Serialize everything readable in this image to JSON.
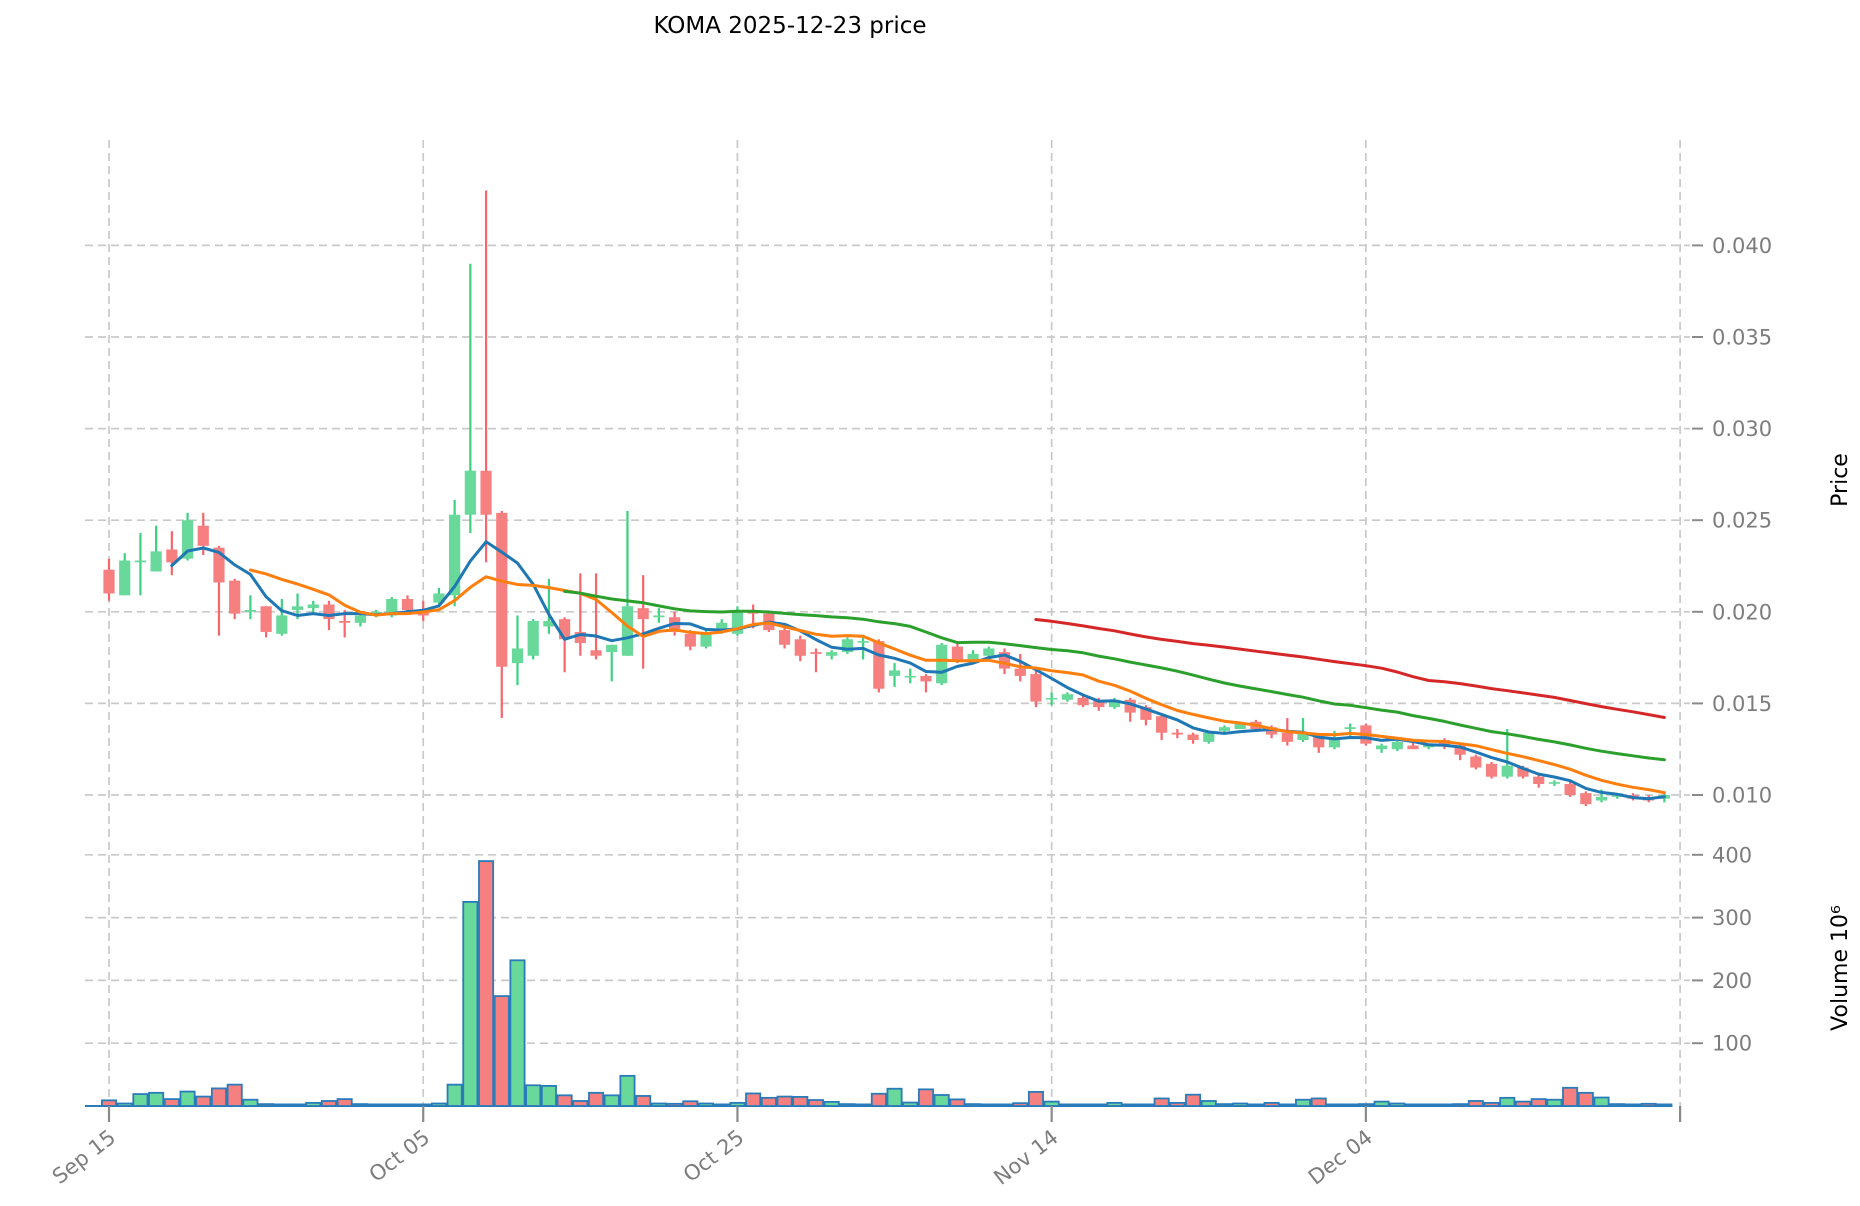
{
  "title": "KOMA  2025-12-23  price",
  "axes": {
    "price_label": "Price",
    "volume_label": "Volume  10⁶",
    "price_ticks": [
      {
        "label": "0.040",
        "value": 0.04
      },
      {
        "label": "0.035",
        "value": 0.035
      },
      {
        "label": "0.030",
        "value": 0.03
      },
      {
        "label": "0.025",
        "value": 0.025
      },
      {
        "label": "0.020",
        "value": 0.02
      },
      {
        "label": "0.015",
        "value": 0.015
      },
      {
        "label": "0.010",
        "value": 0.01
      }
    ],
    "volume_ticks": [
      {
        "label": "400",
        "value": 400
      },
      {
        "label": "300",
        "value": 300
      },
      {
        "label": "200",
        "value": 200
      },
      {
        "label": "100",
        "value": 100
      }
    ],
    "x_ticks": [
      {
        "label": "Sep 15",
        "day": 0
      },
      {
        "label": "Oct 05",
        "day": 20
      },
      {
        "label": "Oct 25",
        "day": 40
      },
      {
        "label": "Nov 14",
        "day": 60
      },
      {
        "label": "Dec 04",
        "day": 80
      },
      {
        "label": "",
        "day": 100
      }
    ]
  },
  "colors": {
    "up_body": "#69d89b",
    "up_wick": "#3bd181",
    "down_body": "#f5807f",
    "down_wick": "#f8656c",
    "volume_edge": "#2a7bba",
    "ma5": "#1f77b4",
    "ma10": "#ff7f0e",
    "ma30": "#2ca02c",
    "ma60": "#d62728",
    "grid": "#c9c9c9",
    "tick": "#8a8a8a"
  },
  "chart_data": {
    "type": "candlestick",
    "title": "KOMA  2025-12-23  price",
    "start_date": "2025-09-15",
    "end_date": "2025-12-23",
    "x_tick_labels": [
      "Sep 15",
      "Oct 05",
      "Oct 25",
      "Nov 14",
      "Dec 04"
    ],
    "ylabel_price": "Price",
    "ylabel_volume": "Volume  10⁶",
    "price_ylim": [
      0.0078,
      0.0458
    ],
    "volume_unit": "millions",
    "moving_average_windows": [
      5,
      10,
      30,
      60
    ],
    "ohlc": [
      [
        0.0223,
        0.0229,
        0.0206,
        0.021
      ],
      [
        0.0209,
        0.0232,
        0.0209,
        0.0228
      ],
      [
        0.0227,
        0.0243,
        0.0209,
        0.0228
      ],
      [
        0.0222,
        0.0247,
        0.0222,
        0.0233
      ],
      [
        0.0234,
        0.0244,
        0.022,
        0.0227
      ],
      [
        0.0229,
        0.0254,
        0.0228,
        0.025
      ],
      [
        0.0247,
        0.0254,
        0.0231,
        0.0236
      ],
      [
        0.0235,
        0.0236,
        0.0187,
        0.0216
      ],
      [
        0.0217,
        0.0218,
        0.0196,
        0.0199
      ],
      [
        0.02,
        0.0209,
        0.0196,
        0.0201
      ],
      [
        0.0203,
        0.0203,
        0.0186,
        0.0189
      ],
      [
        0.0188,
        0.0207,
        0.0187,
        0.0198
      ],
      [
        0.0201,
        0.021,
        0.0196,
        0.0203
      ],
      [
        0.0202,
        0.0206,
        0.0199,
        0.0204
      ],
      [
        0.0204,
        0.0206,
        0.019,
        0.0196
      ],
      [
        0.0195,
        0.0201,
        0.0186,
        0.0194
      ],
      [
        0.0194,
        0.0199,
        0.0192,
        0.0198
      ],
      [
        0.0198,
        0.0201,
        0.0197,
        0.02
      ],
      [
        0.0198,
        0.0208,
        0.0197,
        0.0207
      ],
      [
        0.0207,
        0.0209,
        0.0199,
        0.0201
      ],
      [
        0.02,
        0.0206,
        0.0195,
        0.0198
      ],
      [
        0.0205,
        0.0213,
        0.0204,
        0.021
      ],
      [
        0.0209,
        0.0261,
        0.0203,
        0.0253
      ],
      [
        0.0253,
        0.039,
        0.0243,
        0.0277
      ],
      [
        0.0277,
        0.043,
        0.0227,
        0.0253
      ],
      [
        0.0254,
        0.0255,
        0.0142,
        0.017
      ],
      [
        0.0172,
        0.0198,
        0.016,
        0.018
      ],
      [
        0.0176,
        0.0196,
        0.0174,
        0.0195
      ],
      [
        0.0192,
        0.0218,
        0.0188,
        0.0195
      ],
      [
        0.0196,
        0.0197,
        0.0167,
        0.0185
      ],
      [
        0.0189,
        0.0221,
        0.0176,
        0.0183
      ],
      [
        0.0179,
        0.0221,
        0.0174,
        0.0176
      ],
      [
        0.0178,
        0.0182,
        0.0162,
        0.0182
      ],
      [
        0.0176,
        0.0255,
        0.0176,
        0.0203
      ],
      [
        0.0202,
        0.022,
        0.0169,
        0.0196
      ],
      [
        0.0197,
        0.0202,
        0.0194,
        0.0198
      ],
      [
        0.0197,
        0.02,
        0.0187,
        0.0189
      ],
      [
        0.0188,
        0.019,
        0.0179,
        0.0181
      ],
      [
        0.0181,
        0.019,
        0.018,
        0.0188
      ],
      [
        0.0189,
        0.0196,
        0.0188,
        0.0194
      ],
      [
        0.0188,
        0.0203,
        0.0187,
        0.0201
      ],
      [
        0.0201,
        0.0204,
        0.0191,
        0.0199
      ],
      [
        0.0199,
        0.02,
        0.0189,
        0.019
      ],
      [
        0.019,
        0.0192,
        0.018,
        0.0182
      ],
      [
        0.0185,
        0.0187,
        0.0173,
        0.0176
      ],
      [
        0.0178,
        0.018,
        0.0167,
        0.0177
      ],
      [
        0.0176,
        0.0179,
        0.0174,
        0.0178
      ],
      [
        0.0178,
        0.0186,
        0.0177,
        0.0185
      ],
      [
        0.0184,
        0.0186,
        0.0174,
        0.0184
      ],
      [
        0.0184,
        0.0185,
        0.0156,
        0.0158
      ],
      [
        0.0165,
        0.0172,
        0.0159,
        0.0168
      ],
      [
        0.0165,
        0.0169,
        0.0161,
        0.0165
      ],
      [
        0.0165,
        0.0166,
        0.0156,
        0.0162
      ],
      [
        0.0161,
        0.0183,
        0.016,
        0.0182
      ],
      [
        0.0181,
        0.0183,
        0.0172,
        0.0174
      ],
      [
        0.0174,
        0.0179,
        0.0172,
        0.0177
      ],
      [
        0.0176,
        0.0181,
        0.0174,
        0.018
      ],
      [
        0.0178,
        0.018,
        0.0166,
        0.0169
      ],
      [
        0.0169,
        0.0177,
        0.0162,
        0.0165
      ],
      [
        0.0166,
        0.0168,
        0.0148,
        0.0151
      ],
      [
        0.0153,
        0.0156,
        0.0149,
        0.0153
      ],
      [
        0.0152,
        0.0156,
        0.0151,
        0.0155
      ],
      [
        0.0153,
        0.0155,
        0.0148,
        0.0149
      ],
      [
        0.0152,
        0.0153,
        0.0146,
        0.0148
      ],
      [
        0.0148,
        0.0153,
        0.0147,
        0.0152
      ],
      [
        0.0152,
        0.0153,
        0.014,
        0.0145
      ],
      [
        0.0148,
        0.0149,
        0.0138,
        0.0141
      ],
      [
        0.0143,
        0.0144,
        0.013,
        0.0134
      ],
      [
        0.0134,
        0.0136,
        0.0131,
        0.0133
      ],
      [
        0.0133,
        0.0134,
        0.0128,
        0.013
      ],
      [
        0.0129,
        0.0135,
        0.0128,
        0.0134
      ],
      [
        0.0135,
        0.0138,
        0.0133,
        0.0137
      ],
      [
        0.0136,
        0.0139,
        0.0136,
        0.0139
      ],
      [
        0.014,
        0.0141,
        0.0135,
        0.0136
      ],
      [
        0.0137,
        0.0138,
        0.0131,
        0.0133
      ],
      [
        0.0134,
        0.0142,
        0.0127,
        0.0129
      ],
      [
        0.013,
        0.0142,
        0.0129,
        0.0134
      ],
      [
        0.0132,
        0.0133,
        0.0123,
        0.0126
      ],
      [
        0.0126,
        0.0135,
        0.0125,
        0.0131
      ],
      [
        0.0136,
        0.0139,
        0.0132,
        0.0137
      ],
      [
        0.0138,
        0.0139,
        0.0127,
        0.0128
      ],
      [
        0.0125,
        0.0128,
        0.0123,
        0.0127
      ],
      [
        0.0125,
        0.013,
        0.0124,
        0.0129
      ],
      [
        0.0127,
        0.0129,
        0.0125,
        0.0125
      ],
      [
        0.0126,
        0.0128,
        0.0125,
        0.0128
      ],
      [
        0.013,
        0.0131,
        0.0125,
        0.0127
      ],
      [
        0.0127,
        0.0128,
        0.0119,
        0.0122
      ],
      [
        0.0121,
        0.0122,
        0.0114,
        0.0115
      ],
      [
        0.0117,
        0.0118,
        0.0109,
        0.011
      ],
      [
        0.011,
        0.0136,
        0.0109,
        0.0116
      ],
      [
        0.0115,
        0.0116,
        0.0109,
        0.011
      ],
      [
        0.011,
        0.0112,
        0.0104,
        0.0106
      ],
      [
        0.0107,
        0.0108,
        0.0105,
        0.0107
      ],
      [
        0.0106,
        0.0108,
        0.0099,
        0.01
      ],
      [
        0.0101,
        0.0102,
        0.0094,
        0.0095
      ],
      [
        0.0097,
        0.0103,
        0.0096,
        0.0099
      ],
      [
        0.0099,
        0.0101,
        0.0098,
        0.0101
      ],
      [
        0.01,
        0.0101,
        0.0097,
        0.0098
      ],
      [
        0.0098,
        0.01,
        0.0096,
        0.0097
      ],
      [
        0.0098,
        0.0101,
        0.0096,
        0.01
      ]
    ],
    "volumes_millions": [
      9,
      4,
      19,
      21,
      11,
      23,
      15,
      28,
      34,
      10,
      3,
      2,
      2,
      5,
      8,
      11,
      3,
      2,
      2,
      2,
      2.5,
      4,
      34,
      325,
      390,
      175,
      232,
      33,
      32,
      17,
      8,
      21,
      17,
      48,
      16,
      4,
      3.5,
      7.5,
      4,
      2.5,
      5,
      20,
      13,
      15,
      14.5,
      9.5,
      6.5,
      3,
      2.5,
      19.5,
      27.5,
      5.5,
      26.5,
      17.5,
      10.5,
      3,
      1.5,
      2.5,
      4.5,
      22.5,
      7,
      2,
      1.5,
      1,
      5,
      2,
      1.5,
      12,
      5,
      18,
      8,
      3,
      4,
      2,
      5,
      2,
      10,
      12,
      2.5,
      1.5,
      3,
      7,
      4,
      2.5,
      1.5,
      2,
      3,
      8,
      5,
      13,
      7,
      11,
      10,
      29,
      21,
      13.5,
      3,
      2,
      3.5,
      1.5
    ]
  }
}
